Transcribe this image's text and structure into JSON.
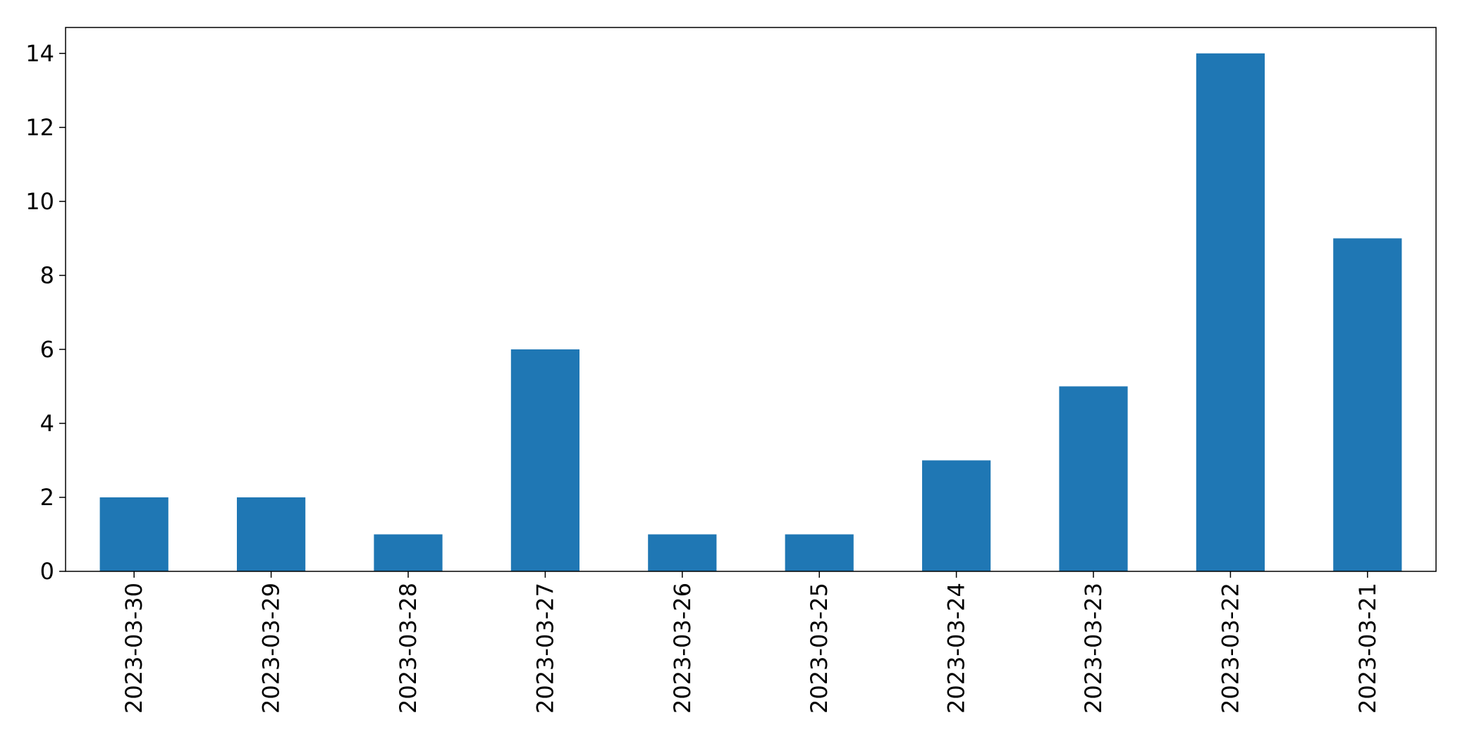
{
  "chart_data": {
    "type": "bar",
    "title": "",
    "xlabel": "",
    "ylabel": "",
    "categories": [
      "2023-03-30",
      "2023-03-29",
      "2023-03-28",
      "2023-03-27",
      "2023-03-26",
      "2023-03-25",
      "2023-03-24",
      "2023-03-23",
      "2023-03-22",
      "2023-03-21"
    ],
    "values": [
      2,
      2,
      1,
      6,
      1,
      1,
      3,
      5,
      14,
      9
    ],
    "ylim": [
      0,
      14.7
    ],
    "yticks": [
      0,
      2,
      4,
      6,
      8,
      10,
      12,
      14
    ],
    "bar_color": "#1f77b4",
    "grid": false,
    "legend": "none"
  }
}
